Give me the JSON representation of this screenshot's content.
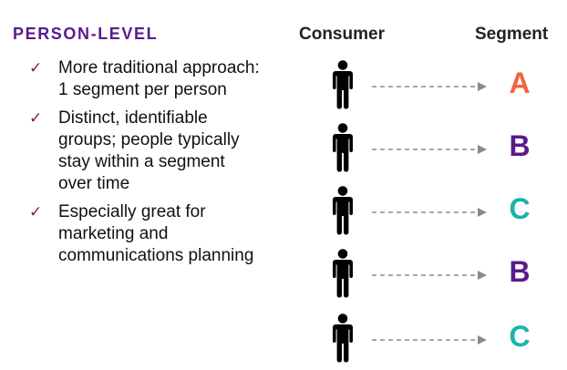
{
  "title": "PERSON-LEVEL",
  "bullets": [
    {
      "icon": "check-icon",
      "lines": [
        "More traditional approach:",
        "1 segment per person"
      ]
    },
    {
      "icon": "check-icon",
      "lines": [
        "Distinct, identifiable",
        "groups; people typically",
        "stay within a segment",
        "over time"
      ]
    },
    {
      "icon": "check-icon",
      "lines": [
        "Especially great for",
        "marketing and",
        "communications planning"
      ]
    }
  ],
  "columns": {
    "consumer": "Consumer",
    "segment": "Segment"
  },
  "rows": [
    {
      "segment": "A",
      "color": "#f2643c"
    },
    {
      "segment": "B",
      "color": "#5b1a8c"
    },
    {
      "segment": "C",
      "color": "#1ab3aa"
    },
    {
      "segment": "B",
      "color": "#5b1a8c"
    },
    {
      "segment": "C",
      "color": "#1ab3aa"
    }
  ],
  "colors": {
    "title": "#5b1a8c",
    "check": "#8c1f2d",
    "arrow": "#8a8a8a",
    "person": "#000000"
  }
}
